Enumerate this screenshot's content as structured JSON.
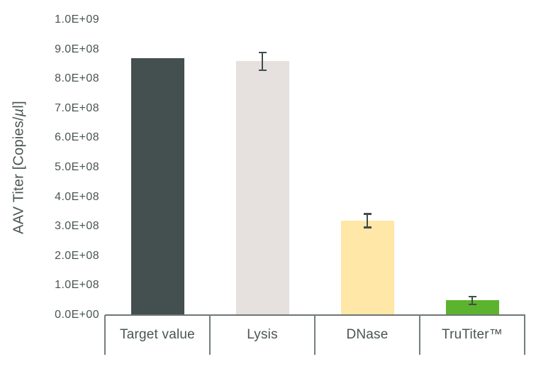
{
  "chart_data": {
    "type": "bar",
    "title": "",
    "xlabel": "",
    "ylabel": "AAV Titer [Copies/µl]",
    "ylabel_parts": {
      "prefix": "AAV Titer [Copies/",
      "mu": "µ",
      "suffix": "l]"
    },
    "categories": [
      "Target value",
      "Lysis",
      "DNase",
      "TruTiter™"
    ],
    "values": [
      870000000.0,
      860000000.0,
      320000000.0,
      50000000.0
    ],
    "errors": [
      null,
      30000000.0,
      23000000.0,
      13000000.0
    ],
    "bar_colors": [
      "#444f4f",
      "#e6e1de",
      "#ffe7a8",
      "#5cb32d"
    ],
    "ylim": [
      0,
      1000000000.0
    ],
    "ytick_step": 100000000.0,
    "ytick_labels": [
      "0.0E+00",
      "1.0E+08",
      "2.0E+08",
      "3.0E+08",
      "4.0E+08",
      "5.0E+08",
      "6.0E+08",
      "7.0E+08",
      "8.0E+08",
      "9.0E+08",
      "1.0E+09"
    ],
    "grid": false,
    "legend": false,
    "colors": {
      "text": "#4a5454",
      "error_bar": "#414c4c",
      "axis_line": "#6e7676",
      "background": "#ffffff"
    }
  }
}
